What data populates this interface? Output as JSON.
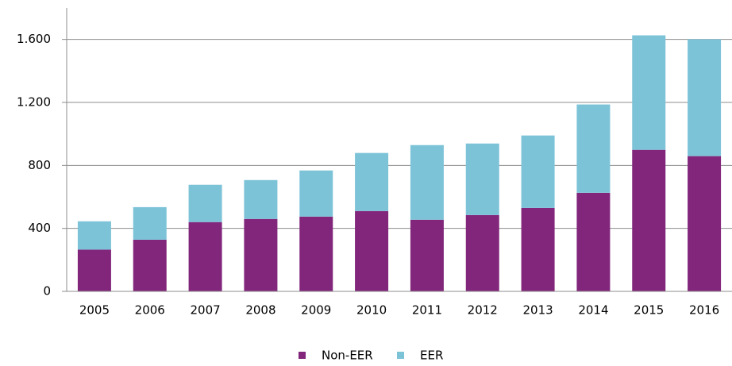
{
  "chart_data": {
    "type": "stacked_bar",
    "categories": [
      "2005",
      "2006",
      "2007",
      "2008",
      "2009",
      "2010",
      "2011",
      "2012",
      "2013",
      "2014",
      "2015",
      "2016"
    ],
    "series": [
      {
        "name": "Non-EER",
        "color": "#82267c",
        "values": [
          265,
          328,
          440,
          460,
          475,
          510,
          455,
          485,
          530,
          626,
          899,
          859
        ]
      },
      {
        "name": "EER",
        "color": "#7dc3d8",
        "values": [
          180,
          207,
          237,
          247,
          293,
          369,
          474,
          454,
          460,
          561,
          727,
          742
        ]
      }
    ],
    "ylim": [
      0,
      1800
    ],
    "yticks": [
      0,
      400,
      800,
      {
        "value": 1200,
        "label": "1.200"
      },
      {
        "value": 1600,
        "label": "1.600"
      }
    ],
    "grid": true,
    "legend": "bottom"
  }
}
